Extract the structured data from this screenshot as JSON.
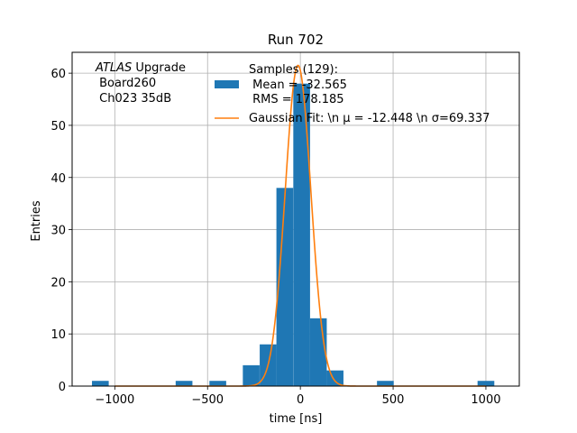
{
  "chart_data": {
    "type": "bar",
    "title": "Run 702",
    "xlabel": "time [ns]",
    "ylabel": "Entries",
    "xlim": [
      -1230,
      1180
    ],
    "ylim": [
      0,
      64
    ],
    "x_ticks": [
      -1000,
      -500,
      0,
      500,
      1000
    ],
    "y_ticks": [
      0,
      10,
      20,
      30,
      40,
      50,
      60
    ],
    "x_tick_labels": [
      "−1000",
      "−500",
      "0",
      "500",
      "1000"
    ],
    "y_tick_labels": [
      "0",
      "10",
      "20",
      "30",
      "40",
      "50",
      "60"
    ],
    "grid": true,
    "histogram": {
      "bin_width": 90.3,
      "bins": [
        {
          "left": -1123,
          "count": 1
        },
        {
          "left": -672,
          "count": 1
        },
        {
          "left": -490,
          "count": 1
        },
        {
          "left": -310,
          "count": 4
        },
        {
          "left": -219,
          "count": 8
        },
        {
          "left": -129,
          "count": 38
        },
        {
          "left": -38,
          "count": 58
        },
        {
          "left": 52,
          "count": 13
        },
        {
          "left": 142,
          "count": 3
        },
        {
          "left": 413,
          "count": 1
        },
        {
          "left": 955,
          "count": 1
        }
      ],
      "color": "#1f77b4"
    },
    "fit": {
      "type": "gaussian",
      "mu": -12.448,
      "sigma": 69.337,
      "amplitude": 61.5,
      "x_range": [
        -1000,
        1000
      ],
      "color": "#ff7f0e"
    },
    "legend": {
      "position": "top-right",
      "entries": [
        {
          "kind": "patch",
          "lines": [
            "Samples (129):",
            " Mean = -32.565",
            " RMS = 178.185"
          ],
          "color": "#1f77b4"
        },
        {
          "kind": "line",
          "lines": [
            "Gaussian Fit: \\n μ = -12.448 \\n σ=69.337"
          ],
          "color": "#ff7f0e"
        }
      ]
    },
    "annotation": {
      "position": "top-left",
      "atlas": "ATLAS",
      "upgrade": " Upgrade",
      "line2": " Board260",
      "line3": " Ch023 35dB"
    }
  }
}
